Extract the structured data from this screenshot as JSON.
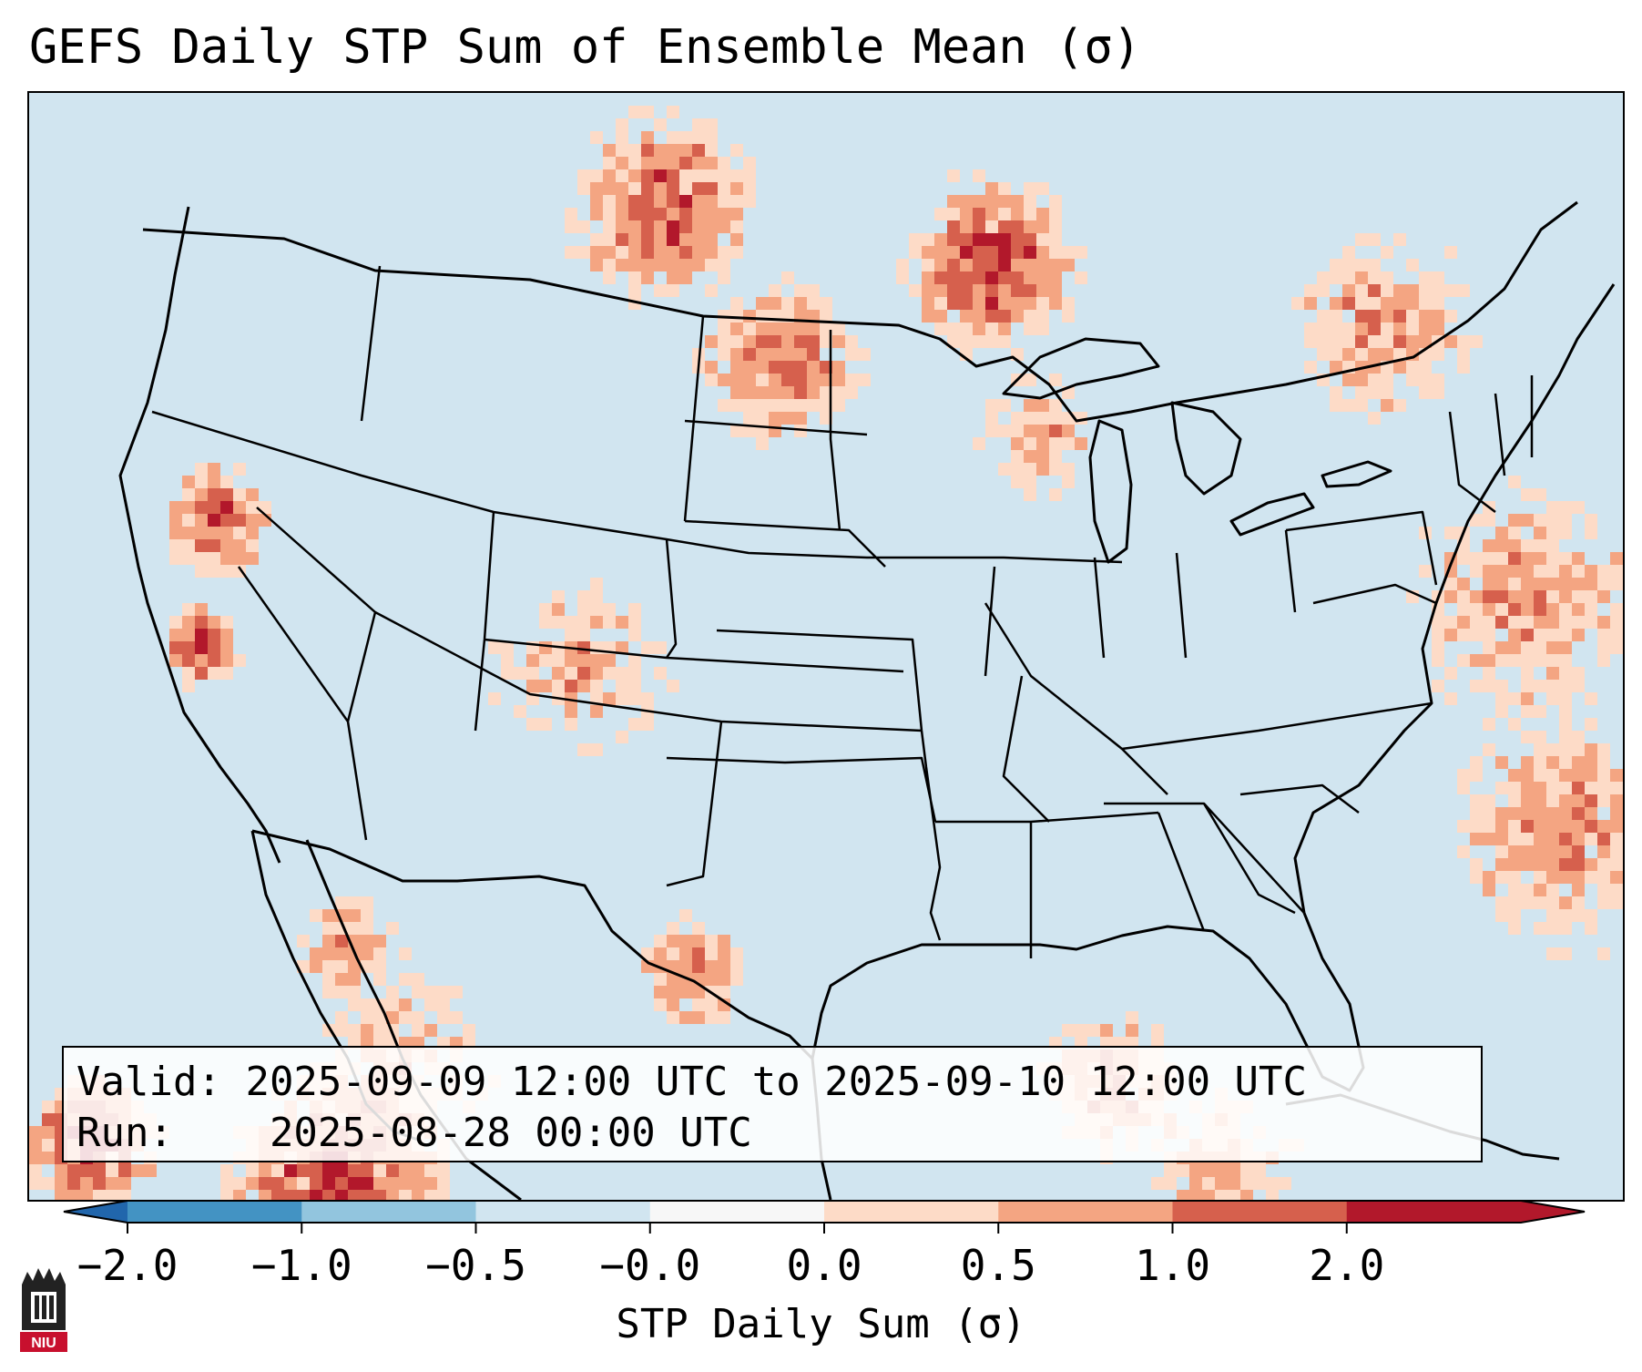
{
  "title": "GEFS Daily STP Sum of Ensemble Mean (σ)",
  "info": {
    "valid_label": "Valid:",
    "valid_value": "2025-09-09 12:00 UTC to 2025-09-10 12:00 UTC",
    "run_label": "Run:",
    "run_value": "2025-08-28 00:00 UTC"
  },
  "colorbar": {
    "label": "STP Daily Sum (σ)",
    "ticks": [
      "−2.0",
      "−1.0",
      "−0.5",
      "−0.0",
      "0.0",
      "0.5",
      "1.0",
      "2.0"
    ],
    "colors": [
      "#4393c3",
      "#92c5de",
      "#d1e5f0",
      "#f7f7f7",
      "#fddbc7",
      "#f4a582",
      "#d6604d",
      "#b2182b"
    ],
    "under_color": "#2166ac",
    "over_color": "#b2182b"
  },
  "map": {
    "background_color": "#d1e5f0",
    "region": "Contiguous United States, southern Canada, northern Mexico, Gulf of Mexico, western Atlantic",
    "logo_text": "NIU"
  }
}
